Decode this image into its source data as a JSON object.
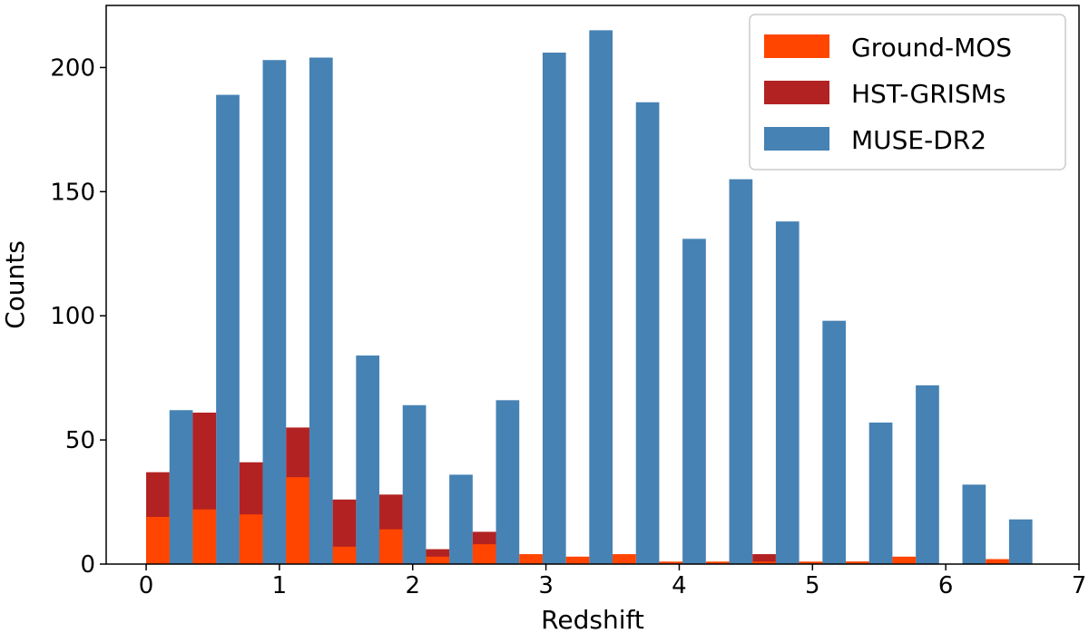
{
  "chart_data": {
    "type": "bar",
    "title": "",
    "xlabel": "Redshift",
    "ylabel": "Counts",
    "xlim": [
      -0.3,
      7.0
    ],
    "ylim": [
      0,
      225
    ],
    "xticks": [
      "0",
      "1",
      "2",
      "3",
      "4",
      "5",
      "6",
      "7"
    ],
    "yticks": [
      "0",
      "50",
      "100",
      "150",
      "200"
    ],
    "bin_width": 0.35,
    "bin_starts": [
      0.0,
      0.35,
      0.7,
      1.05,
      1.4,
      1.75,
      2.1,
      2.45,
      2.8,
      3.15,
      3.5,
      3.85,
      4.2,
      4.55,
      4.9,
      5.25,
      5.6,
      5.95,
      6.3
    ],
    "grid": false,
    "legend_position": "top-right",
    "series": [
      {
        "name": "Ground-MOS",
        "color": "#ff4500",
        "values": [
          19,
          22,
          20,
          35,
          7,
          14,
          3,
          8,
          4,
          3,
          4,
          1,
          1,
          1,
          1,
          1,
          3,
          0,
          2
        ]
      },
      {
        "name": "HST-GRISMs",
        "color": "#b22222",
        "values": [
          37,
          61,
          41,
          55,
          26,
          28,
          6,
          13,
          0,
          0,
          0,
          0,
          0,
          4,
          0,
          1,
          0,
          0,
          0
        ]
      },
      {
        "name": "MUSE-DR2",
        "color": "#4682b4",
        "values": [
          62,
          189,
          203,
          204,
          84,
          64,
          36,
          66,
          206,
          215,
          186,
          131,
          155,
          138,
          98,
          57,
          72,
          32,
          18
        ]
      }
    ]
  }
}
